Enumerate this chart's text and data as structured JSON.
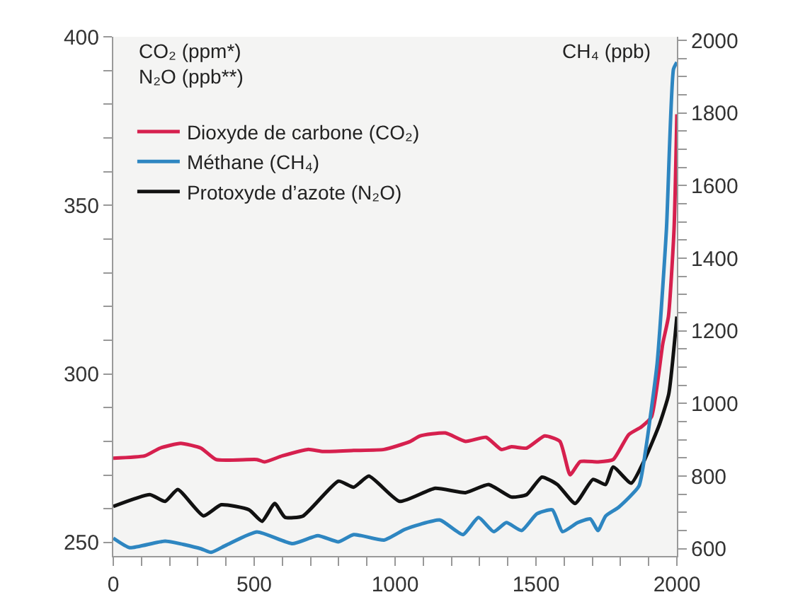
{
  "chart_data": {
    "type": "line",
    "ylabel": "CO₂ (ppm*)\nN₂O (ppb**)",
    "y2label": "CH₄ (ppb)",
    "xlim": [
      0,
      2000
    ],
    "xticks": [
      0,
      {
        "value": 100,
        "label": null
      },
      {
        "value": 200,
        "label": null
      },
      {
        "value": 300,
        "label": null
      },
      {
        "value": 400,
        "label": null
      },
      500,
      {
        "value": 600,
        "label": null
      },
      {
        "value": 700,
        "label": null
      },
      {
        "value": 800,
        "label": null
      },
      {
        "value": 900,
        "label": null
      },
      1000,
      {
        "value": 1100,
        "label": null
      },
      {
        "value": 1200,
        "label": null
      },
      {
        "value": 1300,
        "label": null
      },
      {
        "value": 1400,
        "label": null
      },
      1500,
      {
        "value": 1600,
        "label": null
      },
      {
        "value": 1700,
        "label": null
      },
      {
        "value": 1800,
        "label": null
      },
      {
        "value": 1900,
        "label": null
      },
      2000
    ],
    "ylim": [
      246,
      400
    ],
    "yticks": [
      250,
      {
        "value": 260,
        "label": null
      },
      {
        "value": 270,
        "label": null
      },
      {
        "value": 280,
        "label": null
      },
      {
        "value": 290,
        "label": null
      },
      300,
      {
        "value": 310,
        "label": null
      },
      {
        "value": 320,
        "label": null
      },
      {
        "value": 330,
        "label": null
      },
      {
        "value": 340,
        "label": null
      },
      350,
      {
        "value": 360,
        "label": null
      },
      {
        "value": 370,
        "label": null
      },
      {
        "value": 380,
        "label": null
      },
      {
        "value": 390,
        "label": null
      },
      400
    ],
    "y2lim": [
      580,
      2010
    ],
    "y2ticks": [
      600,
      {
        "value": 650,
        "label": null
      },
      {
        "value": 700,
        "label": null
      },
      {
        "value": 750,
        "label": null
      },
      800,
      {
        "value": 850,
        "label": null
      },
      {
        "value": 900,
        "label": null
      },
      {
        "value": 950,
        "label": null
      },
      1000,
      {
        "value": 1050,
        "label": null
      },
      {
        "value": 1100,
        "label": null
      },
      {
        "value": 1150,
        "label": null
      },
      1200,
      {
        "value": 1250,
        "label": null
      },
      {
        "value": 1300,
        "label": null
      },
      {
        "value": 1350,
        "label": null
      },
      1400,
      {
        "value": 1450,
        "label": null
      },
      {
        "value": 1500,
        "label": null
      },
      {
        "value": 1550,
        "label": null
      },
      1600,
      {
        "value": 1650,
        "label": null
      },
      {
        "value": 1700,
        "label": null
      },
      {
        "value": 1750,
        "label": null
      },
      1800,
      {
        "value": 1850,
        "label": null
      },
      {
        "value": 1900,
        "label": null
      },
      {
        "value": 1950,
        "label": null
      },
      2000
    ],
    "grid": false,
    "legend": "top left",
    "marker": "none",
    "line_style": "solid",
    "series": [
      {
        "name": "Dioxyde de carbone (CO₂)",
        "color": "#d6204e",
        "x": [
          0,
          112,
          166,
          239,
          311,
          365,
          510,
          537,
          600,
          690,
          745,
          853,
          961,
          1052,
          1088,
          1178,
          1250,
          1323,
          1377,
          1413,
          1467,
          1531,
          1585,
          1621,
          1657,
          1720,
          1774,
          1829,
          1874,
          1910,
          1950,
          1970,
          1990,
          2000
        ],
        "values": [
          275,
          275.7,
          278,
          279.4,
          278,
          274.6,
          274.6,
          273.9,
          275.7,
          277.6,
          277,
          277.3,
          277.6,
          279.9,
          281.6,
          282.5,
          280,
          281.2,
          277.6,
          278.4,
          278,
          281.6,
          280,
          270.1,
          274,
          273.9,
          274.6,
          282,
          284.3,
          287.3,
          309,
          317,
          343,
          377
        ]
      },
      {
        "name": "Méthane (CH₄)",
        "color": "#2e86c1",
        "axis": "y2",
        "x": [
          0,
          58,
          184,
          311,
          347,
          401,
          510,
          636,
          726,
          799,
          853,
          961,
          1034,
          1088,
          1160,
          1241,
          1296,
          1350,
          1395,
          1449,
          1503,
          1558,
          1594,
          1648,
          1693,
          1720,
          1747,
          1793,
          1865,
          1888,
          1930,
          1963,
          1988,
          2000
        ],
        "values": [
          629,
          603,
          621,
          600,
          590,
          610,
          646,
          614,
          636,
          619,
          639,
          624,
          653,
          667,
          679,
          639,
          686,
          647,
          672,
          650,
          696,
          707,
          647,
          672,
          682,
          650,
          690,
          714,
          772,
          866,
          1111,
          1481,
          1921,
          1940
        ]
      },
      {
        "name": "Protoxyde d’azote (N₂O)",
        "color": "#111111",
        "x": [
          0,
          130,
          184,
          229,
          320,
          383,
          482,
          528,
          573,
          609,
          672,
          799,
          853,
          907,
          1016,
          1142,
          1250,
          1332,
          1413,
          1467,
          1521,
          1576,
          1639,
          1702,
          1747,
          1774,
          1838,
          1888,
          1938,
          1971,
          2000
        ],
        "values": [
          260.7,
          264.2,
          262.2,
          265.7,
          257.9,
          261.2,
          259.7,
          256.3,
          261.6,
          257.5,
          257.8,
          268.2,
          266.4,
          269.7,
          262.2,
          266.1,
          264.8,
          267.2,
          263.5,
          264.2,
          269.4,
          267.2,
          261.6,
          268.7,
          267.2,
          272.4,
          267.6,
          275,
          285,
          294,
          317
        ]
      }
    ]
  }
}
